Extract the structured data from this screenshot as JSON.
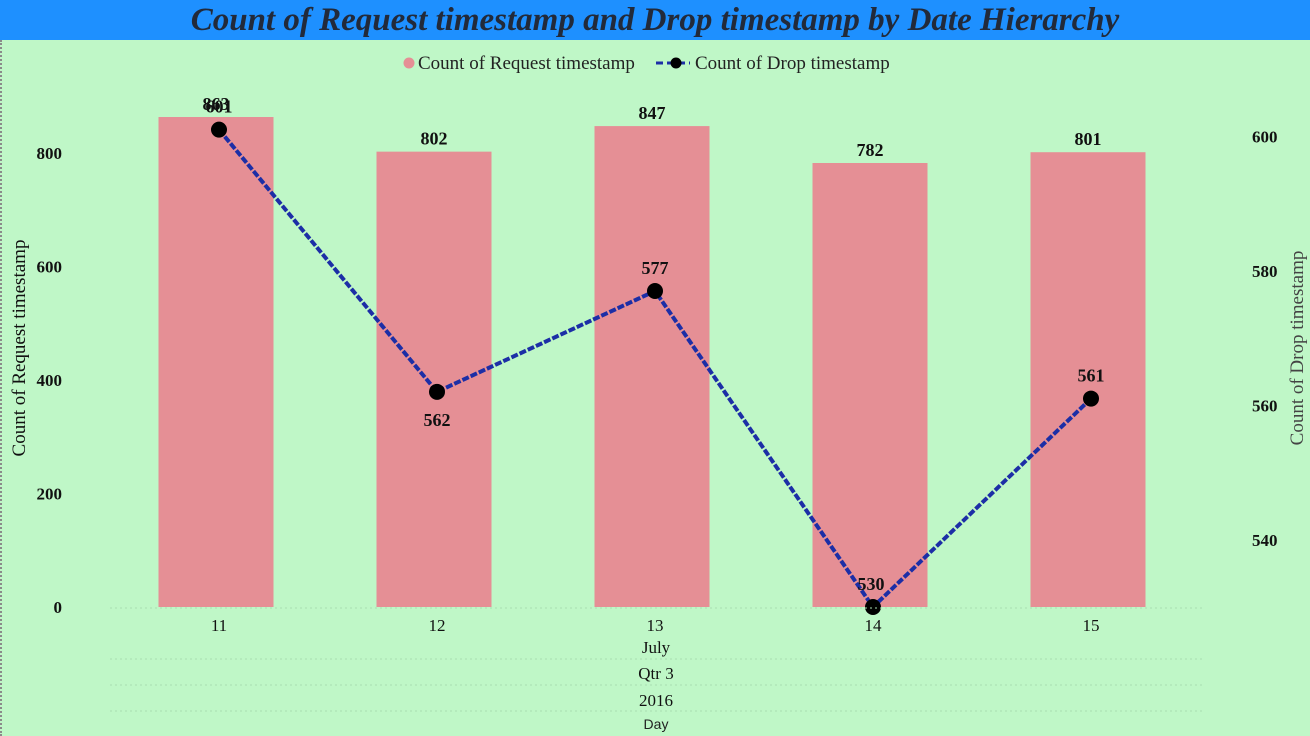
{
  "title": "Count of Request timestamp and Drop timestamp by Date Hierarchy",
  "colors": {
    "background": "#bff7c7",
    "title_bar": "#1e90ff",
    "bar": "#e58f95",
    "line": "#1c2ea6",
    "marker": "#000000"
  },
  "chart_data": {
    "type": "bar",
    "title": "Count of Request timestamp and Drop timestamp by Date Hierarchy",
    "categories": [
      "11",
      "12",
      "13",
      "14",
      "15"
    ],
    "hierarchy_labels": [
      "July",
      "Qtr 3",
      "2016",
      "Day"
    ],
    "series": [
      {
        "name": "Count of Request timestamp",
        "type": "bar",
        "axis": "left",
        "values": [
          863,
          802,
          847,
          782,
          801
        ],
        "labels": [
          "863",
          "802",
          "847",
          "782",
          "801"
        ]
      },
      {
        "name": "Count of Drop timestamp",
        "type": "line",
        "axis": "right",
        "values": [
          601,
          562,
          577,
          530,
          561
        ],
        "labels": [
          "601",
          "562",
          "577",
          "530",
          "561"
        ]
      }
    ],
    "y_left": {
      "label": "Count of Request timestamp",
      "range": [
        0,
        900
      ],
      "ticks": [
        0,
        200,
        400,
        600,
        800
      ],
      "tick_labels": [
        "0",
        "200",
        "400",
        "600",
        "800"
      ]
    },
    "y_right": {
      "label": "Count of Drop timestamp",
      "range": [
        530,
        606
      ],
      "ticks": [
        540,
        560,
        580,
        600
      ],
      "tick_labels": [
        "540",
        "560",
        "580",
        "600"
      ]
    },
    "legend_position": "top-center",
    "grid": false
  }
}
